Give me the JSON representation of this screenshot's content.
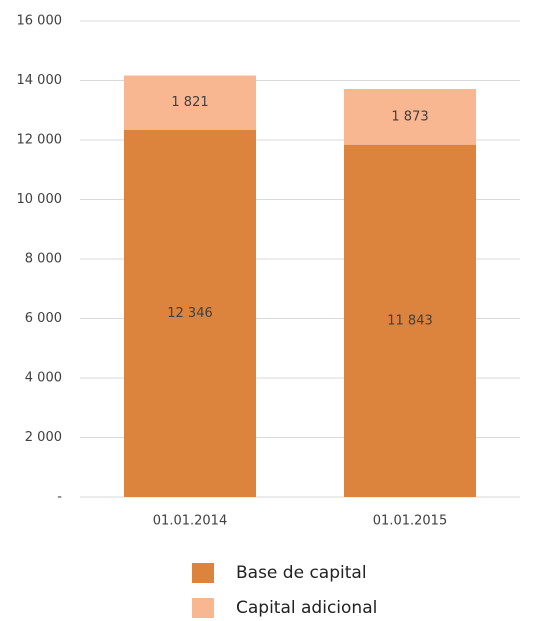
{
  "chart_data": {
    "type": "stacked_bar",
    "categories": [
      "01.01.2014",
      "01.01.2015"
    ],
    "series": [
      {
        "name": "Base de capital",
        "color": "#dc843e",
        "values": [
          12346,
          11843
        ],
        "value_labels": [
          "12 346",
          "11 843"
        ]
      },
      {
        "name": "Capital adicional",
        "color": "#f8b790",
        "values": [
          1821,
          1873
        ],
        "value_labels": [
          "1 821",
          "1 873"
        ]
      }
    ],
    "ylim": [
      0,
      16000
    ],
    "yticks": [
      {
        "value": 0,
        "label": "-"
      },
      {
        "value": 2000,
        "label": "2 000"
      },
      {
        "value": 4000,
        "label": "4 000"
      },
      {
        "value": 6000,
        "label": "6 000"
      },
      {
        "value": 8000,
        "label": "8 000"
      },
      {
        "value": 10000,
        "label": "10 000"
      },
      {
        "value": 12000,
        "label": "12 000"
      },
      {
        "value": 14000,
        "label": "14 000"
      },
      {
        "value": 16000,
        "label": "16 000"
      }
    ],
    "grid": true,
    "legend": "bottom"
  }
}
